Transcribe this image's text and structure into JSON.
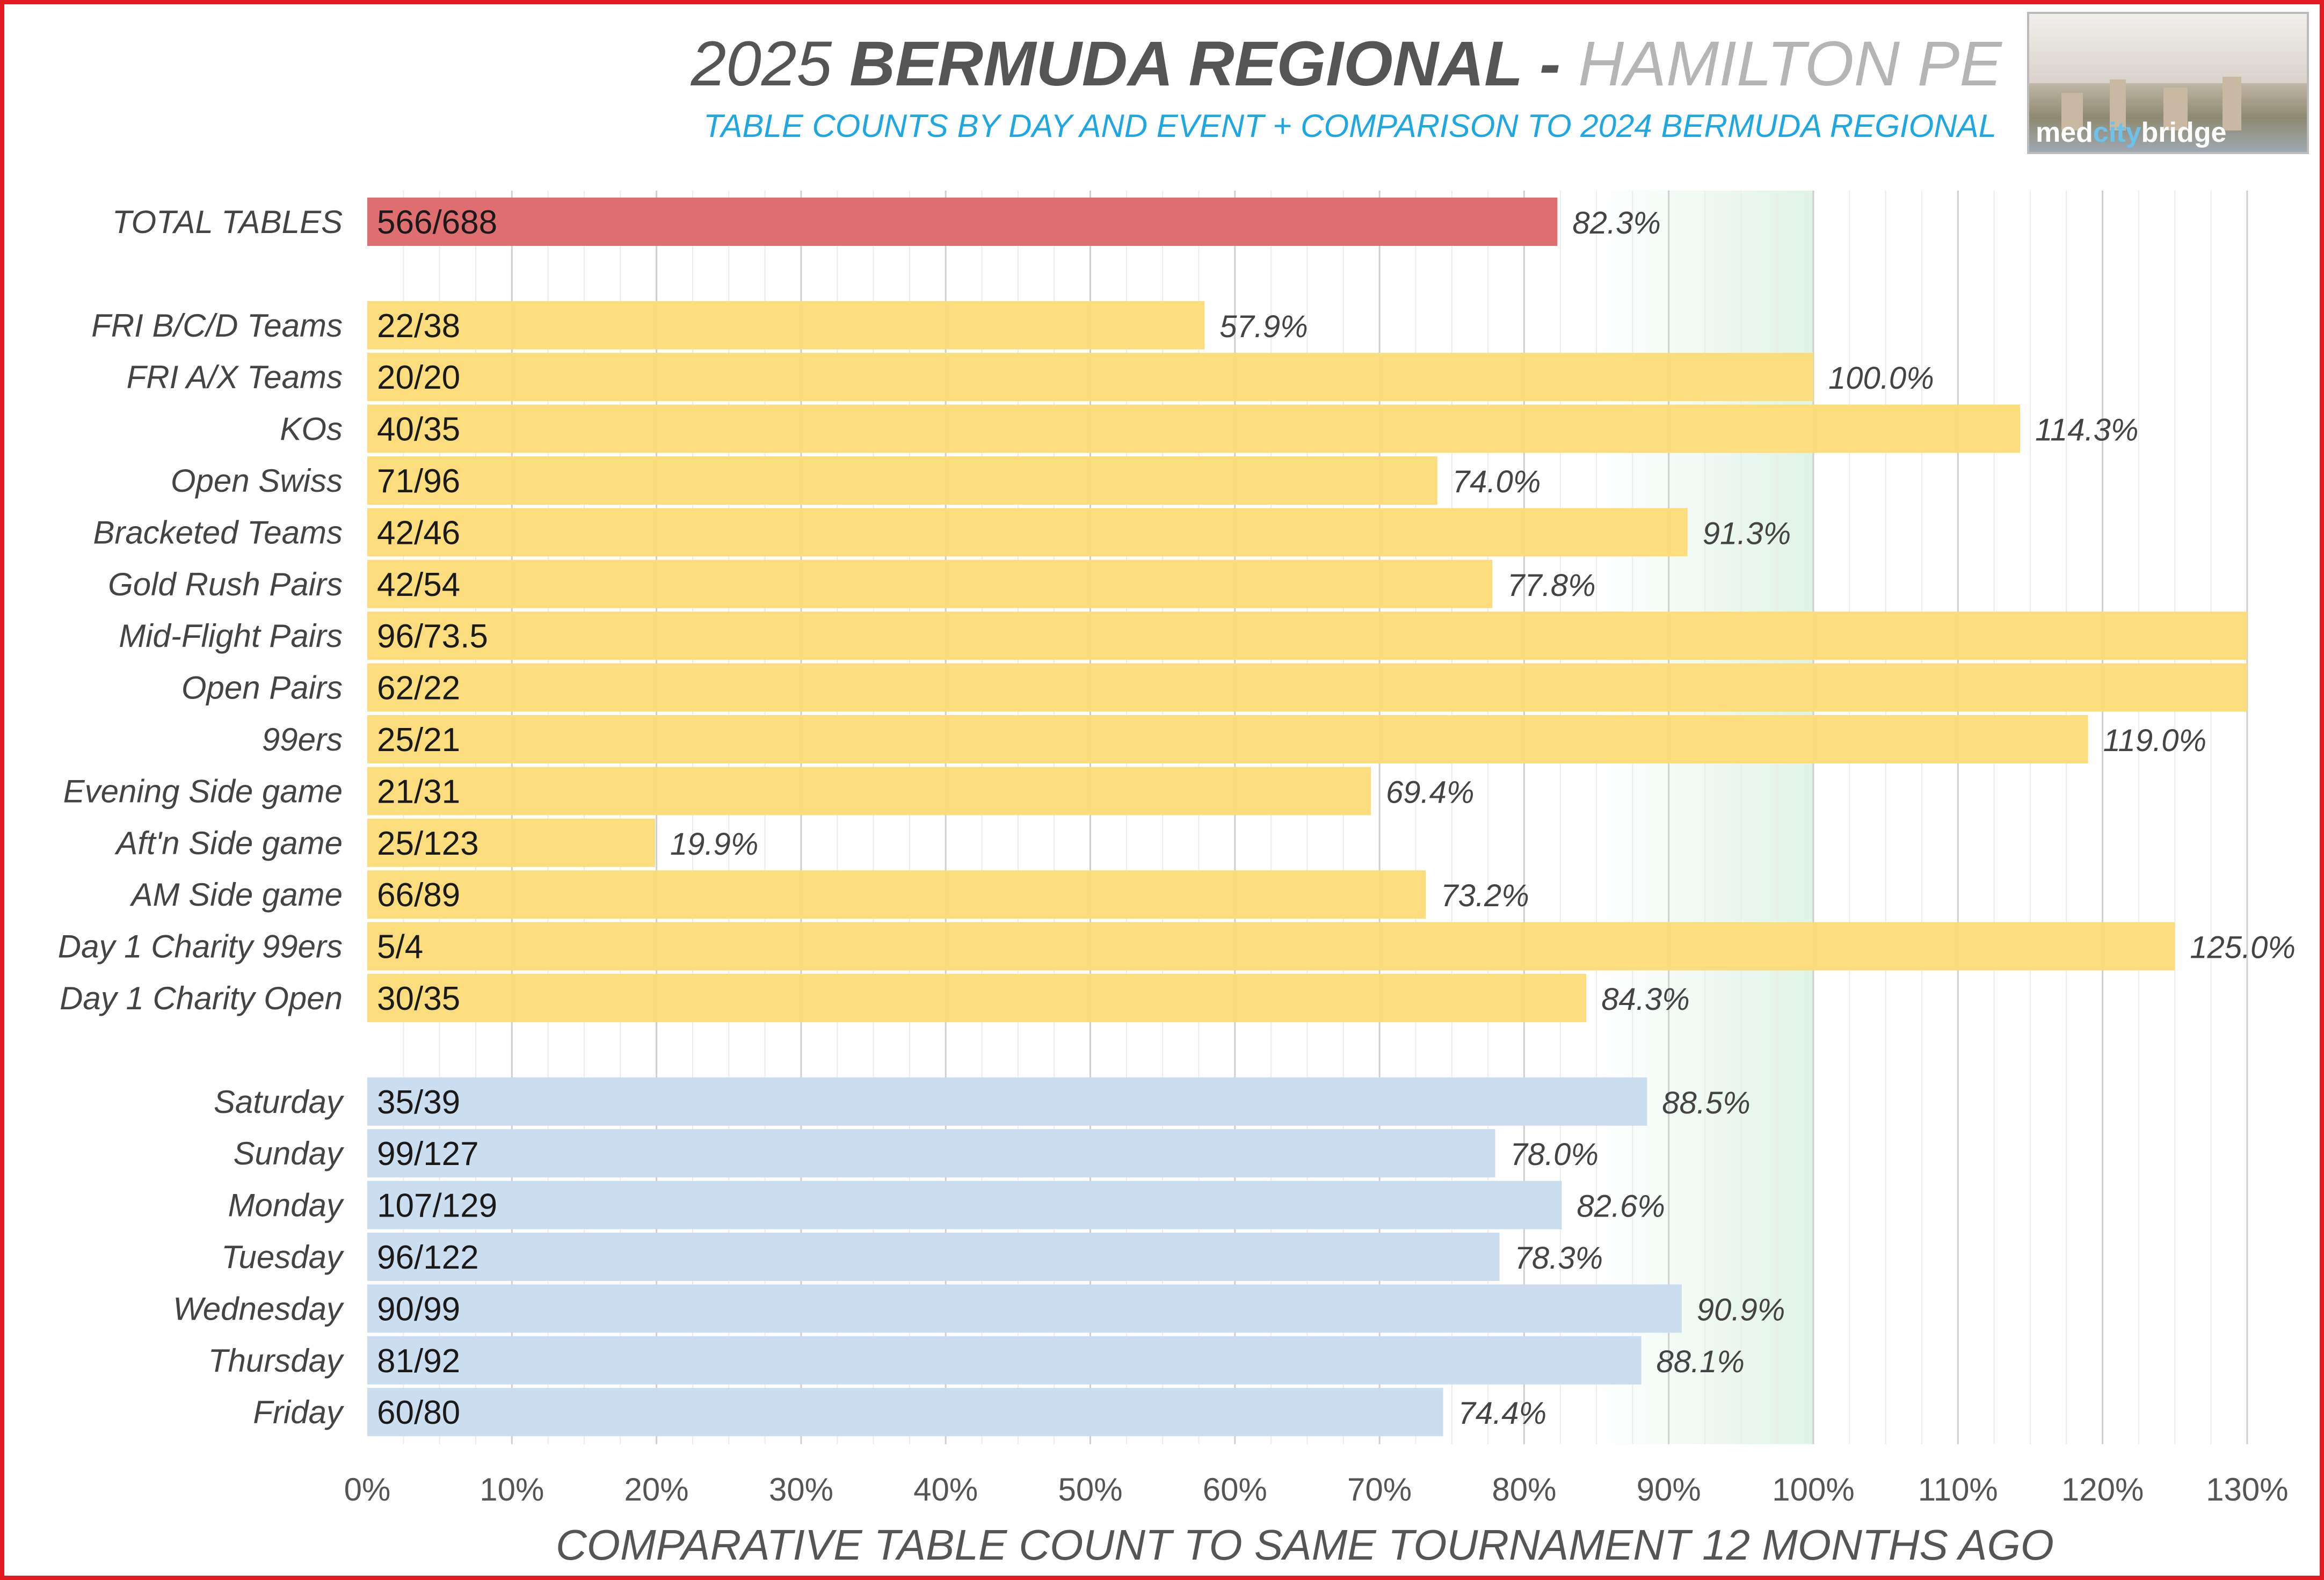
{
  "header": {
    "title_year": "2025",
    "title_event": "BERMUDA REGIONAL -",
    "title_location": "HAMILTON PE",
    "subtitle": "TABLE COUNTS BY DAY AND EVENT + COMPARISON TO 2024 BERMUDA REGIONAL",
    "logo_text_a": "med",
    "logo_text_b": "city",
    "logo_text_c": "bridge"
  },
  "colors": {
    "total": "#de6e70",
    "event": "#fcdc7a",
    "day": "#c9ddef",
    "target_band": "#dff3e6",
    "frame": "#e31b23",
    "subtitle": "#1ea7e0"
  },
  "chart_data": {
    "type": "bar",
    "orientation": "horizontal",
    "xlabel": "COMPARATIVE TABLE COUNT TO SAME TOURNAMENT 12 MONTHS AGO",
    "xlim": [
      0,
      130
    ],
    "xtick_labels": [
      "0%",
      "10%",
      "20%",
      "30%",
      "40%",
      "50%",
      "60%",
      "70%",
      "80%",
      "90%",
      "100%",
      "110%",
      "120%",
      "130%"
    ],
    "grid": true,
    "groups": [
      {
        "color": "#de6e70",
        "rows": [
          {
            "category": "TOTAL TABLES",
            "count_label": "566/688",
            "value": 82.3,
            "value_label": "82.3%"
          }
        ]
      },
      {
        "color": "#fcdc7a",
        "rows": [
          {
            "category": "FRI B/C/D Teams",
            "count_label": "22/38",
            "value": 57.9,
            "value_label": "57.9%"
          },
          {
            "category": "FRI A/X Teams",
            "count_label": "20/20",
            "value": 100.0,
            "value_label": "100.0%"
          },
          {
            "category": "KOs",
            "count_label": "40/35",
            "value": 114.3,
            "value_label": "114.3%"
          },
          {
            "category": "Open Swiss",
            "count_label": "71/96",
            "value": 74.0,
            "value_label": "74.0%"
          },
          {
            "category": "Bracketed Teams",
            "count_label": "42/46",
            "value": 91.3,
            "value_label": "91.3%"
          },
          {
            "category": "Gold Rush Pairs",
            "count_label": "42/54",
            "value": 77.8,
            "value_label": "77.8%"
          },
          {
            "category": "Mid-Flight Pairs",
            "count_label": "96/73.5",
            "value": 130,
            "value_label": ""
          },
          {
            "category": "Open Pairs",
            "count_label": "62/22",
            "value": 130,
            "value_label": ""
          },
          {
            "category": "99ers",
            "count_label": "25/21",
            "value": 119.0,
            "value_label": "119.0%"
          },
          {
            "category": "Evening Side game",
            "count_label": "21/31",
            "value": 69.4,
            "value_label": "69.4%"
          },
          {
            "category": "Aft'n Side game",
            "count_label": "25/123",
            "value": 19.9,
            "value_label": "19.9%"
          },
          {
            "category": "AM Side game",
            "count_label": "66/89",
            "value": 73.2,
            "value_label": "73.2%"
          },
          {
            "category": "Day 1 Charity 99ers",
            "count_label": "5/4",
            "value": 125.0,
            "value_label": "125.0%"
          },
          {
            "category": "Day 1 Charity Open",
            "count_label": "30/35",
            "value": 84.3,
            "value_label": "84.3%"
          }
        ]
      },
      {
        "color": "#c9ddef",
        "rows": [
          {
            "category": "Saturday",
            "count_label": "35/39",
            "value": 88.5,
            "value_label": "88.5%"
          },
          {
            "category": "Sunday",
            "count_label": "99/127",
            "value": 78.0,
            "value_label": "78.0%"
          },
          {
            "category": "Monday",
            "count_label": "107/129",
            "value": 82.6,
            "value_label": "82.6%"
          },
          {
            "category": "Tuesday",
            "count_label": "96/122",
            "value": 78.3,
            "value_label": "78.3%"
          },
          {
            "category": "Wednesday",
            "count_label": "90/99",
            "value": 90.9,
            "value_label": "90.9%"
          },
          {
            "category": "Thursday",
            "count_label": "81/92",
            "value": 88.1,
            "value_label": "88.1%"
          },
          {
            "category": "Friday",
            "count_label": "60/80",
            "value": 74.4,
            "value_label": "74.4%"
          }
        ]
      }
    ],
    "target_band": [
      85,
      100
    ]
  }
}
